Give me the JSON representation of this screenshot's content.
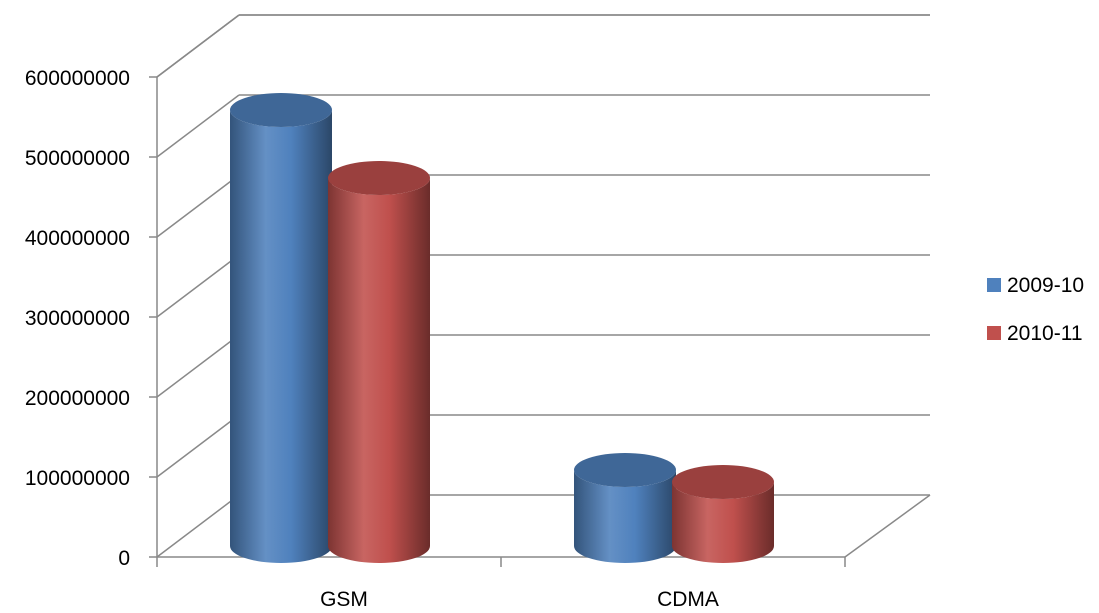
{
  "chart_data": {
    "type": "bar",
    "style": "3d-cylinder",
    "title": "",
    "xlabel": "",
    "ylabel": "",
    "categories": [
      "GSM",
      "CDMA"
    ],
    "series": [
      {
        "name": "2009-10",
        "color": "#4F81BD",
        "values": [
          545000000,
          95000000
        ]
      },
      {
        "name": "2010-11",
        "color": "#C0504D",
        "values": [
          460000000,
          80000000
        ]
      }
    ],
    "ylim": [
      0,
      600000000
    ],
    "y_ticks": [
      0,
      100000000,
      200000000,
      300000000,
      400000000,
      500000000,
      600000000
    ],
    "y_tick_labels": [
      "0",
      "100000000",
      "200000000",
      "300000000",
      "400000000",
      "500000000",
      "600000000"
    ],
    "grid": true,
    "legend": "right"
  }
}
